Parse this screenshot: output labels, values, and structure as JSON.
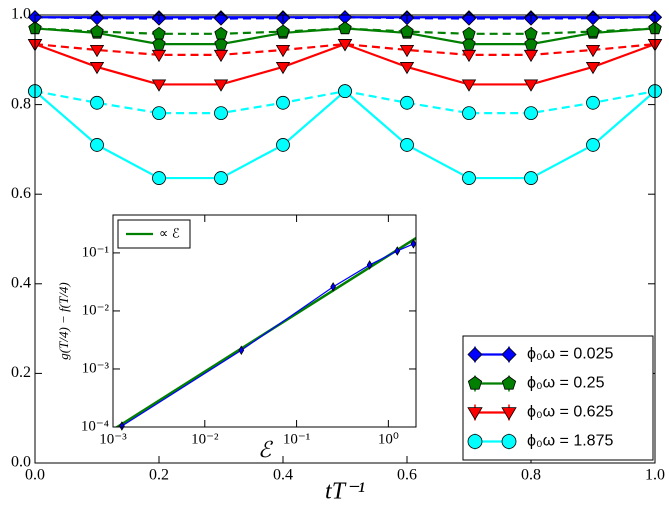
{
  "chart_data": [
    {
      "type": "line",
      "xlabel": "tT⁻¹",
      "x": [
        0,
        0.1,
        0.2,
        0.3,
        0.4,
        0.5,
        0.6,
        0.7,
        0.8,
        0.9,
        1.0
      ],
      "xlim": [
        0,
        1
      ],
      "ylim": [
        0,
        1
      ],
      "xticks": [
        {
          "value": 0,
          "label": "0.0"
        },
        {
          "value": 0.2,
          "label": "0.2"
        },
        {
          "value": 0.4,
          "label": "0.4"
        },
        {
          "value": 0.6,
          "label": "0.6"
        },
        {
          "value": 0.8,
          "label": "0.8"
        },
        {
          "value": 1,
          "label": "1.0"
        }
      ],
      "yticks": [
        {
          "value": 0,
          "label": "0.0"
        },
        {
          "value": 0.2,
          "label": "0.2"
        },
        {
          "value": 0.4,
          "label": "0.4"
        },
        {
          "value": 0.6,
          "label": "0.6"
        },
        {
          "value": 0.8,
          "label": "0.8"
        },
        {
          "value": 1,
          "label": "1.0"
        }
      ],
      "legend": "lower right",
      "series": [
        {
          "name": "ϕ₀ω = 0.025",
          "color": "#0000ff",
          "marker": "D",
          "linestyle": "solid",
          "values": [
            0.995,
            0.995,
            0.995,
            0.995,
            0.995,
            0.995,
            0.995,
            0.995,
            0.995,
            0.995,
            0.995
          ]
        },
        {
          "color": "#0000ff",
          "marker": "D",
          "linestyle": "dashed",
          "values": [
            0.995,
            0.993,
            0.992,
            0.992,
            0.993,
            0.995,
            0.993,
            0.992,
            0.992,
            0.993,
            0.995
          ]
        },
        {
          "name": "ϕ₀ω = 0.25",
          "color": "#007f00",
          "marker": "p",
          "linestyle": "solid",
          "values": [
            0.97,
            0.96,
            0.935,
            0.935,
            0.96,
            0.97,
            0.96,
            0.935,
            0.935,
            0.96,
            0.97
          ]
        },
        {
          "color": "#007f00",
          "marker": "p",
          "linestyle": "dashed",
          "values": [
            0.97,
            0.963,
            0.958,
            0.958,
            0.963,
            0.97,
            0.963,
            0.958,
            0.958,
            0.963,
            0.97
          ]
        },
        {
          "name": "ϕ₀ω = 0.625",
          "color": "#ff0000",
          "marker": "v",
          "linestyle": "solid",
          "values": [
            0.935,
            0.884,
            0.845,
            0.845,
            0.884,
            0.935,
            0.884,
            0.845,
            0.845,
            0.884,
            0.935
          ]
        },
        {
          "color": "#ff0000",
          "marker": "v",
          "linestyle": "dashed",
          "values": [
            0.935,
            0.922,
            0.911,
            0.911,
            0.922,
            0.935,
            0.922,
            0.911,
            0.911,
            0.922,
            0.935
          ]
        },
        {
          "name": "ϕ₀ω = 1.875",
          "color": "#00ffff",
          "marker": "o",
          "linestyle": "solid",
          "values": [
            0.83,
            0.71,
            0.636,
            0.636,
            0.71,
            0.83,
            0.71,
            0.636,
            0.636,
            0.71,
            0.83
          ]
        },
        {
          "color": "#00ffff",
          "marker": "o",
          "linestyle": "dashed",
          "values": [
            0.83,
            0.804,
            0.781,
            0.781,
            0.804,
            0.83,
            0.804,
            0.781,
            0.781,
            0.804,
            0.83
          ]
        }
      ]
    },
    {
      "type": "line",
      "log": true,
      "xlabel": "ℰ",
      "ylabel": "g(T/4) − f(T/4)",
      "xlim": [
        0.001,
        2
      ],
      "ylim": [
        0.0001,
        0.45
      ],
      "xticks": [
        {
          "value": 0.001,
          "label": "10⁻³"
        },
        {
          "value": 0.01,
          "label": "10⁻²"
        },
        {
          "value": 0.1,
          "label": "10⁻¹"
        },
        {
          "value": 1,
          "label": "10⁰"
        }
      ],
      "yticks": [
        {
          "value": 0.0001,
          "label": "10⁻⁴"
        },
        {
          "value": 0.001,
          "label": "10⁻³"
        },
        {
          "value": 0.01,
          "label": "10⁻²"
        },
        {
          "value": 0.1,
          "label": "10⁻¹"
        }
      ],
      "legend": "upper left",
      "series": [
        {
          "name": "∝ ℰ",
          "color": "#007f00",
          "linestyle": "solid",
          "x": [
            0.001,
            2
          ],
          "values": [
            9e-05,
            0.18
          ]
        },
        {
          "color": "#0000ff",
          "marker": "d",
          "linestyle": "solid",
          "x": [
            0.00125,
            0.025,
            0.25,
            0.625,
            1.25,
            1.875
          ],
          "values": [
            0.000104,
            0.0021,
            0.026,
            0.062,
            0.108,
            0.143
          ]
        }
      ]
    }
  ]
}
